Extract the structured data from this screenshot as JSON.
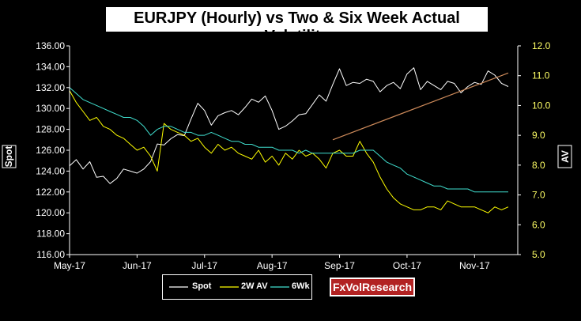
{
  "chart_data": {
    "type": "line",
    "title": "EURJPY (Hourly) vs Two & Six Week Actual Volatility",
    "ylabel": "Spot",
    "y2label": "AV",
    "ylim": [
      116,
      136
    ],
    "y2lim": [
      5.0,
      12.0
    ],
    "x_tick_labels": [
      "May-17",
      "Jun-17",
      "Jul-17",
      "Aug-17",
      "Sep-17",
      "Oct-17",
      "Nov-17"
    ],
    "y_ticks": [
      "116.00",
      "118.00",
      "120.00",
      "122.00",
      "124.00",
      "126.00",
      "128.00",
      "130.00",
      "132.00",
      "134.00",
      "136.00"
    ],
    "y2_ticks": [
      "5.0",
      "6.0",
      "7.0",
      "8.0",
      "9.0",
      "10.0",
      "11.0",
      "12.0"
    ],
    "grid": false,
    "legend": "bottom",
    "x_month_index": [
      0,
      1,
      2,
      3,
      4,
      5,
      6
    ],
    "series": [
      {
        "name": "Spot",
        "axis": "left",
        "color": "#ffffff",
        "x": [
          0.0,
          0.1,
          0.2,
          0.3,
          0.4,
          0.5,
          0.6,
          0.7,
          0.8,
          0.9,
          1.0,
          1.1,
          1.2,
          1.3,
          1.4,
          1.5,
          1.6,
          1.7,
          1.8,
          1.9,
          2.0,
          2.1,
          2.2,
          2.3,
          2.4,
          2.5,
          2.6,
          2.7,
          2.8,
          2.9,
          3.0,
          3.1,
          3.2,
          3.3,
          3.4,
          3.5,
          3.6,
          3.7,
          3.8,
          3.9,
          4.0,
          4.1,
          4.2,
          4.3,
          4.4,
          4.5,
          4.6,
          4.7,
          4.8,
          4.9,
          5.0,
          5.1,
          5.2,
          5.3,
          5.4,
          5.5,
          5.6,
          5.7,
          5.8,
          5.9,
          6.0,
          6.1,
          6.2,
          6.3,
          6.4,
          6.5
        ],
        "values": [
          124.5,
          125.1,
          124.2,
          124.9,
          123.4,
          123.5,
          122.8,
          123.3,
          124.2,
          124.0,
          123.8,
          124.2,
          124.9,
          126.6,
          126.5,
          127.1,
          127.5,
          127.4,
          129.0,
          130.5,
          129.8,
          128.4,
          129.3,
          129.6,
          129.8,
          129.4,
          130.1,
          130.9,
          130.6,
          131.2,
          129.8,
          128.0,
          128.3,
          128.8,
          129.4,
          129.5,
          130.4,
          131.3,
          130.7,
          132.3,
          133.8,
          132.2,
          132.5,
          132.4,
          132.8,
          132.6,
          131.6,
          132.2,
          132.5,
          131.9,
          133.3,
          133.9,
          131.8,
          132.6,
          132.2,
          131.8,
          132.6,
          132.4,
          131.5,
          132.1,
          132.5,
          132.3,
          133.6,
          133.2,
          132.4,
          132.1
        ]
      },
      {
        "name": "2W AV",
        "axis": "right",
        "color": "#ffff00",
        "x": [
          0.0,
          0.1,
          0.2,
          0.3,
          0.4,
          0.5,
          0.6,
          0.7,
          0.8,
          0.9,
          1.0,
          1.1,
          1.2,
          1.3,
          1.4,
          1.5,
          1.6,
          1.7,
          1.8,
          1.9,
          2.0,
          2.1,
          2.2,
          2.3,
          2.4,
          2.5,
          2.6,
          2.7,
          2.8,
          2.9,
          3.0,
          3.1,
          3.2,
          3.3,
          3.4,
          3.5,
          3.6,
          3.7,
          3.8,
          3.9,
          4.0,
          4.1,
          4.2,
          4.3,
          4.4,
          4.5,
          4.6,
          4.7,
          4.8,
          4.9,
          5.0,
          5.1,
          5.2,
          5.3,
          5.4,
          5.5,
          5.6,
          5.7,
          5.8,
          5.9,
          6.0,
          6.1,
          6.2,
          6.3,
          6.4,
          6.5
        ],
        "values": [
          10.5,
          10.1,
          9.8,
          9.5,
          9.6,
          9.3,
          9.2,
          9.0,
          8.9,
          8.7,
          8.5,
          8.6,
          8.3,
          7.8,
          9.4,
          9.2,
          9.1,
          9.0,
          8.8,
          8.9,
          8.6,
          8.4,
          8.7,
          8.5,
          8.6,
          8.4,
          8.3,
          8.2,
          8.5,
          8.1,
          8.3,
          8.0,
          8.4,
          8.2,
          8.5,
          8.3,
          8.4,
          8.2,
          7.9,
          8.4,
          8.5,
          8.3,
          8.3,
          8.8,
          8.4,
          8.1,
          7.6,
          7.2,
          6.9,
          6.7,
          6.6,
          6.5,
          6.5,
          6.6,
          6.6,
          6.5,
          6.8,
          6.7,
          6.6,
          6.6,
          6.6,
          6.5,
          6.4,
          6.6,
          6.5,
          6.6
        ]
      },
      {
        "name": "6Wk",
        "axis": "right",
        "color": "#40e0d0",
        "x": [
          0.0,
          0.1,
          0.2,
          0.3,
          0.4,
          0.5,
          0.6,
          0.7,
          0.8,
          0.9,
          1.0,
          1.1,
          1.2,
          1.3,
          1.4,
          1.5,
          1.6,
          1.7,
          1.8,
          1.9,
          2.0,
          2.1,
          2.2,
          2.3,
          2.4,
          2.5,
          2.6,
          2.7,
          2.8,
          2.9,
          3.0,
          3.1,
          3.2,
          3.3,
          3.4,
          3.5,
          3.6,
          3.7,
          3.8,
          3.9,
          4.0,
          4.1,
          4.2,
          4.3,
          4.4,
          4.5,
          4.6,
          4.7,
          4.8,
          4.9,
          5.0,
          5.1,
          5.2,
          5.3,
          5.4,
          5.5,
          5.6,
          5.7,
          5.8,
          5.9,
          6.0,
          6.1,
          6.2,
          6.3,
          6.4,
          6.5
        ],
        "values": [
          10.6,
          10.4,
          10.2,
          10.1,
          10.0,
          9.9,
          9.8,
          9.7,
          9.6,
          9.6,
          9.5,
          9.3,
          9.0,
          9.2,
          9.3,
          9.3,
          9.2,
          9.1,
          9.1,
          9.0,
          9.0,
          9.1,
          9.0,
          8.9,
          8.8,
          8.8,
          8.7,
          8.7,
          8.6,
          8.6,
          8.6,
          8.5,
          8.5,
          8.5,
          8.4,
          8.5,
          8.4,
          8.4,
          8.4,
          8.4,
          8.4,
          8.4,
          8.4,
          8.5,
          8.5,
          8.5,
          8.3,
          8.1,
          8.0,
          7.9,
          7.7,
          7.6,
          7.5,
          7.4,
          7.3,
          7.3,
          7.2,
          7.2,
          7.2,
          7.2,
          7.1,
          7.1,
          7.1,
          7.1,
          7.1,
          7.1
        ]
      }
    ],
    "trendline": {
      "axis": "left",
      "color": "#cd8a5a",
      "x": [
        3.9,
        6.5
      ],
      "values": [
        127.0,
        133.4
      ]
    }
  },
  "legend_labels": {
    "spot": "Spot",
    "twoweek": "2W AV",
    "sixweek": "6Wk"
  },
  "brand": "FxVolResearch",
  "colors": {
    "axis": "#000000",
    "tick_text": "#ffffff",
    "right_tick_text": "#ffff66",
    "title_bg": "#ffffff",
    "brand_bg": "#b22222"
  }
}
